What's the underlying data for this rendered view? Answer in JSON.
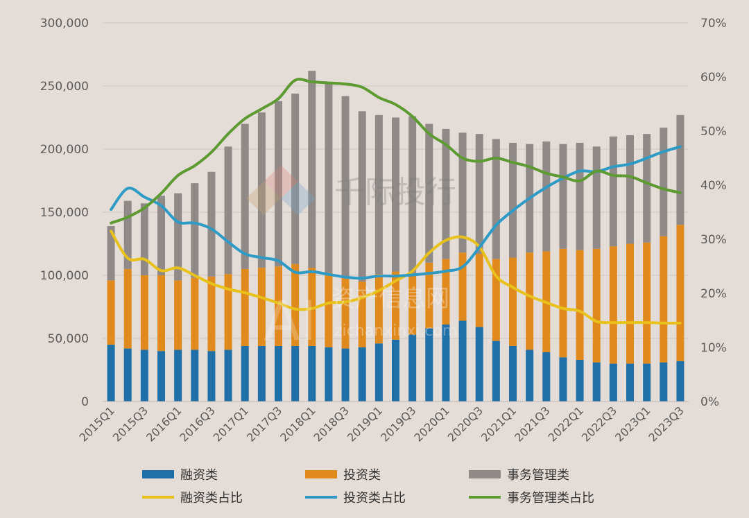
{
  "chart_data": {
    "type": "bar+line",
    "categories": [
      "2015Q1",
      "2015Q2",
      "2015Q3",
      "2015Q4",
      "2016Q1",
      "2016Q2",
      "2016Q3",
      "2016Q4",
      "2017Q1",
      "2017Q2",
      "2017Q3",
      "2017Q4",
      "2018Q1",
      "2018Q2",
      "2018Q3",
      "2018Q4",
      "2019Q1",
      "2019Q2",
      "2019Q3",
      "2019Q4",
      "2020Q1",
      "2020Q2",
      "2020Q3",
      "2020Q4",
      "2021Q1",
      "2021Q2",
      "2021Q3",
      "2021Q4",
      "2022Q1",
      "2022Q2",
      "2022Q3",
      "2022Q4",
      "2023Q1",
      "2023Q2",
      "2023Q3"
    ],
    "x_tick_labels": [
      "2015Q1",
      "2015Q3",
      "2016Q1",
      "2016Q3",
      "2017Q1",
      "2017Q3",
      "2018Q1",
      "2018Q3",
      "2019Q1",
      "2019Q3",
      "2020Q1",
      "2020Q3",
      "2021Q1",
      "2021Q3",
      "2022Q1",
      "2022Q3",
      "2023Q1",
      "2023Q3"
    ],
    "y_left": {
      "ticks": [
        "0",
        "50,000",
        "100,000",
        "150,000",
        "200,000",
        "250,000",
        "300,000"
      ],
      "ylim": [
        0,
        300000
      ]
    },
    "y_right": {
      "ticks": [
        "0%",
        "10%",
        "20%",
        "30%",
        "40%",
        "50%",
        "60%",
        "70%"
      ],
      "ylim": [
        0,
        70
      ]
    },
    "bar_series": [
      {
        "name": "融资类",
        "color": "#1f6fa8",
        "values": [
          45000,
          42000,
          41000,
          40000,
          41000,
          41000,
          40000,
          41000,
          44000,
          44000,
          44000,
          44000,
          44000,
          43000,
          42000,
          43000,
          46000,
          49000,
          53000,
          58000,
          61000,
          64000,
          59000,
          48000,
          44000,
          41000,
          39000,
          35000,
          33000,
          31000,
          30000,
          30000,
          30000,
          31000,
          32000
        ]
      },
      {
        "name": "投资类",
        "color": "#e08a1e",
        "values": [
          51000,
          63000,
          59000,
          60000,
          55000,
          57000,
          59000,
          60000,
          61000,
          62000,
          63000,
          65000,
          62000,
          59000,
          56000,
          52000,
          55000,
          54000,
          49000,
          52000,
          52000,
          54000,
          58000,
          65000,
          70000,
          77000,
          80000,
          86000,
          87000,
          90000,
          93000,
          95000,
          96000,
          100000,
          108000
        ]
      },
      {
        "name": "事务管理类",
        "color": "#8f8a87",
        "values": [
          43000,
          54000,
          57000,
          63000,
          69000,
          75000,
          83000,
          101000,
          115000,
          123000,
          131000,
          135000,
          156000,
          150000,
          144000,
          135000,
          126000,
          122000,
          124000,
          110000,
          103000,
          95000,
          95000,
          95000,
          91000,
          86000,
          87000,
          83000,
          85000,
          81000,
          87000,
          86000,
          86000,
          86000,
          87000
        ]
      }
    ],
    "line_series": [
      {
        "name": "融资类占比",
        "color": "#e8c11a",
        "values": [
          31.5,
          26.5,
          26.3,
          24.2,
          24.7,
          23.3,
          21.8,
          20.8,
          20.1,
          19.2,
          18.2,
          17.1,
          17.2,
          18.2,
          18.4,
          19.2,
          20.5,
          22.3,
          24.1,
          27.5,
          29.8,
          30.4,
          28.6,
          23.2,
          21.1,
          19.5,
          18.3,
          17.2,
          16.7,
          14.8,
          14.6,
          14.6,
          14.6,
          14.5,
          14.5
        ]
      },
      {
        "name": "投资类占比",
        "color": "#2e9bc6",
        "values": [
          35.5,
          39.4,
          37.8,
          36.2,
          33.2,
          33.0,
          31.9,
          29.5,
          27.3,
          26.6,
          26.0,
          23.9,
          24.0,
          23.5,
          23.0,
          22.8,
          23.2,
          23.2,
          23.4,
          23.7,
          24.1,
          24.9,
          28.5,
          32.6,
          35.3,
          37.6,
          39.6,
          41.3,
          42.6,
          42.5,
          43.4,
          43.9,
          45.0,
          46.2,
          47.1
        ]
      },
      {
        "name": "事务管理类占比",
        "color": "#5e9a32",
        "values": [
          33.0,
          34.1,
          35.8,
          38.5,
          41.8,
          43.6,
          46.1,
          49.5,
          52.3,
          54.1,
          56.0,
          59.4,
          59.1,
          58.9,
          58.7,
          58.1,
          56.2,
          54.9,
          52.7,
          49.5,
          47.5,
          45.0,
          44.4,
          45.0,
          44.2,
          43.4,
          42.2,
          41.5,
          40.8,
          42.6,
          41.8,
          41.6,
          40.4,
          39.3,
          38.6
        ]
      }
    ],
    "legend_position": "bottom",
    "grid": "horizontal"
  },
  "watermarks": {
    "brand_text": "千际投行",
    "site_text_cn": "资产信息网",
    "site_text_url": "zichanxinxi.com",
    "ai_mark": "AI"
  }
}
